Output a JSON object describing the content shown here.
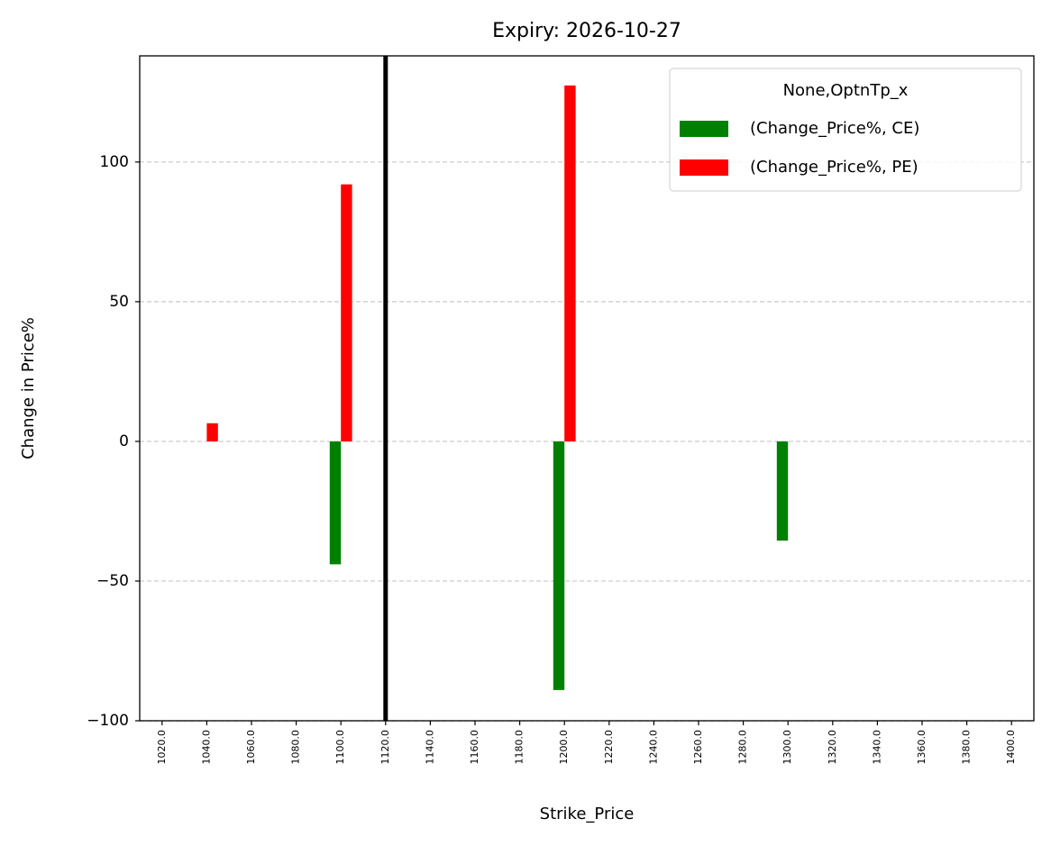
{
  "chart_data": {
    "type": "bar",
    "title": "Expiry: 2026-10-27",
    "xlabel": "Strike_Price",
    "ylabel": "Change in Price%",
    "categories": [
      "1020.0",
      "1040.0",
      "1060.0",
      "1080.0",
      "1100.0",
      "1120.0",
      "1140.0",
      "1160.0",
      "1180.0",
      "1200.0",
      "1220.0",
      "1240.0",
      "1260.0",
      "1280.0",
      "1300.0",
      "1320.0",
      "1340.0",
      "1360.0",
      "1380.0",
      "1400.0"
    ],
    "series": [
      {
        "name": "(Change_Price%, CE)",
        "color": "#008000",
        "values": [
          null,
          null,
          null,
          null,
          -44,
          null,
          null,
          null,
          null,
          -89,
          null,
          null,
          null,
          null,
          -35.5,
          null,
          null,
          null,
          null,
          null
        ]
      },
      {
        "name": "(Change_Price%, PE)",
        "color": "#ff0000",
        "values": [
          null,
          6.5,
          null,
          null,
          92,
          null,
          null,
          null,
          null,
          127.4,
          null,
          null,
          null,
          null,
          null,
          null,
          null,
          null,
          null,
          null
        ]
      }
    ],
    "legend_title": "None,OptnTp_x",
    "legend": "upper right",
    "vline": "1120.0",
    "ylim": [
      -100,
      138
    ],
    "yticks": [
      {
        "value": -100,
        "label": "−100"
      },
      {
        "value": -50,
        "label": "−50"
      },
      0,
      50,
      100
    ],
    "grid": "y"
  }
}
